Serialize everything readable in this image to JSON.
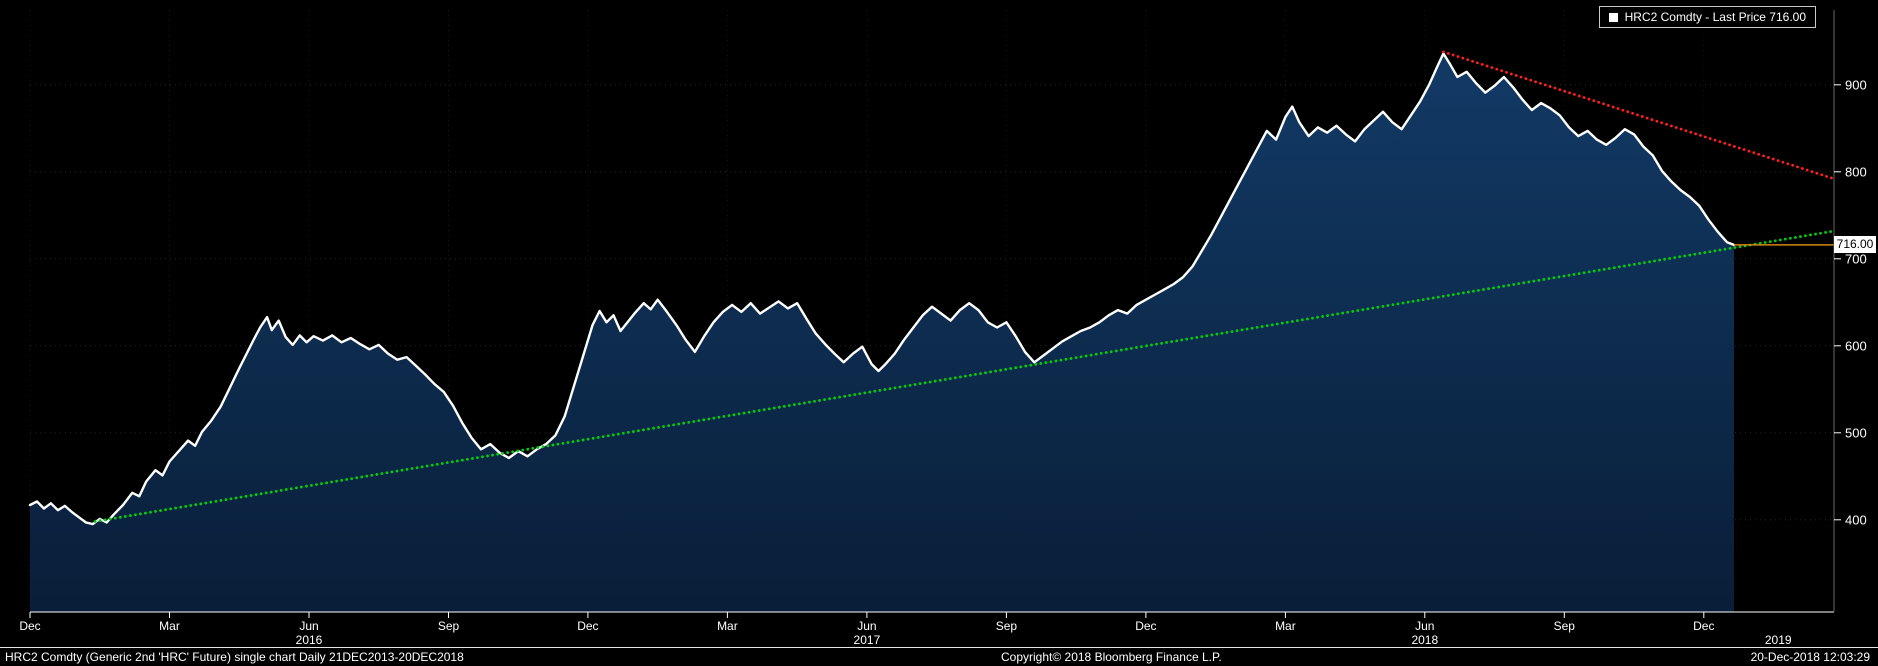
{
  "legend": {
    "label": "HRC2 Comdty - Last Price 716.00"
  },
  "last_price": {
    "value": "716.00",
    "price": 716
  },
  "footer": {
    "left": "HRC2 Comdty (Generic 2nd 'HRC' Future) single chart  Daily 21DEC2013-20DEC2018",
    "center": "Copyright© 2018 Bloomberg Finance L.P.",
    "right": "20-Dec-2018 12:03:29"
  },
  "colors": {
    "background": "#000000",
    "price_line": "#ffffff",
    "area_top": "#123a66",
    "area_bottom": "#091e38",
    "support_trend": "#00cc11",
    "resistance_trend": "#ff1f1f",
    "last_price_line": "#d4870f",
    "axis_text": "#ffffff"
  },
  "chart_data": {
    "type": "area",
    "title": "HRC2 Comdty - Last Price 716.00",
    "xlabel": "",
    "ylabel": "",
    "x_unit": "months from Dec 2015",
    "x_domain": [
      0,
      38.8
    ],
    "ylim": [
      294,
      986
    ],
    "y_ticks": [
      400,
      500,
      600,
      700,
      800,
      900
    ],
    "x_ticks": [
      {
        "t": 0,
        "label": "Dec"
      },
      {
        "t": 3,
        "label": "Mar"
      },
      {
        "t": 6,
        "label": "Jun"
      },
      {
        "t": 9,
        "label": "Sep"
      },
      {
        "t": 12,
        "label": "Dec"
      },
      {
        "t": 15,
        "label": "Mar"
      },
      {
        "t": 18,
        "label": "Jun"
      },
      {
        "t": 21,
        "label": "Sep"
      },
      {
        "t": 24,
        "label": "Dec"
      },
      {
        "t": 27,
        "label": "Mar"
      },
      {
        "t": 30,
        "label": "Jun"
      },
      {
        "t": 33,
        "label": "Sep"
      },
      {
        "t": 36,
        "label": "Dec"
      }
    ],
    "year_labels": [
      {
        "t": 6,
        "label": "2016"
      },
      {
        "t": 18,
        "label": "2017"
      },
      {
        "t": 30,
        "label": "2018"
      },
      {
        "t": 37.6,
        "label": "2019"
      }
    ],
    "grid": true,
    "legend_position": "top-right",
    "series": [
      {
        "name": "HRC2 Comdty Last Price",
        "color": "#ffffff",
        "fill": [
          "#123a66",
          "#091e38"
        ],
        "points": [
          [
            0.0,
            417
          ],
          [
            0.15,
            421
          ],
          [
            0.3,
            413
          ],
          [
            0.45,
            419
          ],
          [
            0.6,
            411
          ],
          [
            0.75,
            416
          ],
          [
            0.9,
            409
          ],
          [
            1.05,
            403
          ],
          [
            1.2,
            397
          ],
          [
            1.35,
            395
          ],
          [
            1.5,
            401
          ],
          [
            1.65,
            397
          ],
          [
            1.8,
            406
          ],
          [
            2.0,
            417
          ],
          [
            2.2,
            431
          ],
          [
            2.35,
            427
          ],
          [
            2.5,
            444
          ],
          [
            2.7,
            457
          ],
          [
            2.85,
            451
          ],
          [
            3.0,
            467
          ],
          [
            3.2,
            479
          ],
          [
            3.4,
            491
          ],
          [
            3.55,
            485
          ],
          [
            3.7,
            501
          ],
          [
            3.9,
            514
          ],
          [
            4.1,
            530
          ],
          [
            4.3,
            552
          ],
          [
            4.5,
            574
          ],
          [
            4.65,
            590
          ],
          [
            4.8,
            606
          ],
          [
            4.95,
            621
          ],
          [
            5.1,
            633
          ],
          [
            5.2,
            618
          ],
          [
            5.35,
            629
          ],
          [
            5.5,
            610
          ],
          [
            5.65,
            601
          ],
          [
            5.8,
            612
          ],
          [
            5.95,
            604
          ],
          [
            6.1,
            611
          ],
          [
            6.3,
            606
          ],
          [
            6.5,
            612
          ],
          [
            6.7,
            604
          ],
          [
            6.9,
            609
          ],
          [
            7.1,
            602
          ],
          [
            7.3,
            596
          ],
          [
            7.5,
            601
          ],
          [
            7.7,
            591
          ],
          [
            7.9,
            584
          ],
          [
            8.1,
            587
          ],
          [
            8.3,
            577
          ],
          [
            8.5,
            567
          ],
          [
            8.7,
            556
          ],
          [
            8.9,
            547
          ],
          [
            9.1,
            531
          ],
          [
            9.3,
            511
          ],
          [
            9.5,
            494
          ],
          [
            9.7,
            481
          ],
          [
            9.9,
            487
          ],
          [
            10.1,
            477
          ],
          [
            10.3,
            471
          ],
          [
            10.5,
            479
          ],
          [
            10.7,
            473
          ],
          [
            10.9,
            481
          ],
          [
            11.1,
            487
          ],
          [
            11.3,
            497
          ],
          [
            11.5,
            519
          ],
          [
            11.7,
            554
          ],
          [
            11.9,
            589
          ],
          [
            12.1,
            624
          ],
          [
            12.25,
            640
          ],
          [
            12.4,
            627
          ],
          [
            12.55,
            635
          ],
          [
            12.7,
            617
          ],
          [
            12.85,
            627
          ],
          [
            13.0,
            637
          ],
          [
            13.2,
            649
          ],
          [
            13.35,
            642
          ],
          [
            13.5,
            653
          ],
          [
            13.7,
            639
          ],
          [
            13.9,
            624
          ],
          [
            14.1,
            607
          ],
          [
            14.3,
            593
          ],
          [
            14.5,
            611
          ],
          [
            14.7,
            627
          ],
          [
            14.9,
            639
          ],
          [
            15.1,
            647
          ],
          [
            15.3,
            639
          ],
          [
            15.5,
            649
          ],
          [
            15.7,
            637
          ],
          [
            15.9,
            644
          ],
          [
            16.1,
            651
          ],
          [
            16.3,
            643
          ],
          [
            16.5,
            649
          ],
          [
            16.7,
            631
          ],
          [
            16.9,
            614
          ],
          [
            17.1,
            602
          ],
          [
            17.3,
            591
          ],
          [
            17.5,
            581
          ],
          [
            17.7,
            591
          ],
          [
            17.9,
            599
          ],
          [
            18.1,
            579
          ],
          [
            18.25,
            571
          ],
          [
            18.4,
            579
          ],
          [
            18.6,
            591
          ],
          [
            18.8,
            607
          ],
          [
            19.0,
            621
          ],
          [
            19.2,
            635
          ],
          [
            19.4,
            645
          ],
          [
            19.6,
            637
          ],
          [
            19.8,
            629
          ],
          [
            20.0,
            641
          ],
          [
            20.2,
            649
          ],
          [
            20.4,
            641
          ],
          [
            20.6,
            627
          ],
          [
            20.8,
            621
          ],
          [
            21.0,
            627
          ],
          [
            21.2,
            611
          ],
          [
            21.4,
            593
          ],
          [
            21.6,
            581
          ],
          [
            21.8,
            589
          ],
          [
            22.0,
            597
          ],
          [
            22.2,
            605
          ],
          [
            22.4,
            611
          ],
          [
            22.6,
            617
          ],
          [
            22.8,
            621
          ],
          [
            23.0,
            627
          ],
          [
            23.2,
            635
          ],
          [
            23.4,
            641
          ],
          [
            23.6,
            637
          ],
          [
            23.8,
            647
          ],
          [
            24.0,
            653
          ],
          [
            24.2,
            659
          ],
          [
            24.4,
            665
          ],
          [
            24.6,
            671
          ],
          [
            24.8,
            679
          ],
          [
            25.0,
            691
          ],
          [
            25.2,
            709
          ],
          [
            25.4,
            727
          ],
          [
            25.6,
            747
          ],
          [
            25.8,
            767
          ],
          [
            26.0,
            787
          ],
          [
            26.2,
            807
          ],
          [
            26.4,
            827
          ],
          [
            26.6,
            847
          ],
          [
            26.8,
            837
          ],
          [
            27.0,
            863
          ],
          [
            27.15,
            875
          ],
          [
            27.3,
            857
          ],
          [
            27.5,
            841
          ],
          [
            27.7,
            851
          ],
          [
            27.9,
            845
          ],
          [
            28.1,
            853
          ],
          [
            28.3,
            843
          ],
          [
            28.5,
            835
          ],
          [
            28.7,
            849
          ],
          [
            28.9,
            859
          ],
          [
            29.1,
            869
          ],
          [
            29.3,
            857
          ],
          [
            29.5,
            849
          ],
          [
            29.7,
            865
          ],
          [
            29.9,
            881
          ],
          [
            30.1,
            901
          ],
          [
            30.25,
            919
          ],
          [
            30.4,
            936
          ],
          [
            30.55,
            923
          ],
          [
            30.7,
            909
          ],
          [
            30.9,
            915
          ],
          [
            31.1,
            902
          ],
          [
            31.3,
            891
          ],
          [
            31.5,
            899
          ],
          [
            31.7,
            909
          ],
          [
            31.9,
            897
          ],
          [
            32.1,
            883
          ],
          [
            32.3,
            871
          ],
          [
            32.5,
            879
          ],
          [
            32.7,
            873
          ],
          [
            32.9,
            865
          ],
          [
            33.1,
            851
          ],
          [
            33.3,
            841
          ],
          [
            33.5,
            847
          ],
          [
            33.7,
            837
          ],
          [
            33.9,
            831
          ],
          [
            34.1,
            839
          ],
          [
            34.3,
            849
          ],
          [
            34.5,
            843
          ],
          [
            34.7,
            829
          ],
          [
            34.9,
            819
          ],
          [
            35.1,
            801
          ],
          [
            35.3,
            789
          ],
          [
            35.5,
            779
          ],
          [
            35.7,
            771
          ],
          [
            35.9,
            761
          ],
          [
            36.1,
            745
          ],
          [
            36.3,
            731
          ],
          [
            36.5,
            719
          ],
          [
            36.65,
            716
          ]
        ]
      }
    ],
    "trendlines": [
      {
        "name": "support",
        "color": "#00cc11",
        "style": "dotted",
        "from": [
          1.4,
          398
        ],
        "to": [
          38.8,
          732
        ]
      },
      {
        "name": "resistance",
        "color": "#ff1f1f",
        "style": "dotted",
        "from": [
          30.4,
          938
        ],
        "to": [
          38.8,
          792
        ]
      }
    ],
    "last_price_line": {
      "price": 716,
      "color": "#d4870f",
      "from_t": 36.65
    }
  }
}
